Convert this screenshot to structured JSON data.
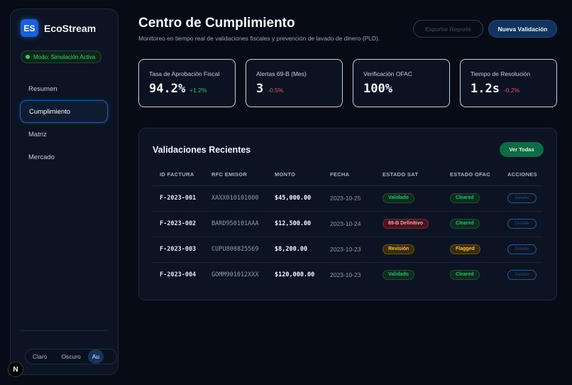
{
  "app": {
    "logo_initials": "ES",
    "name": "EcoStream"
  },
  "sidebar": {
    "mode_label": "Modo: Simulación Activa",
    "items": [
      {
        "label": "Resumen",
        "active": false
      },
      {
        "label": "Cumplimiento",
        "active": true
      },
      {
        "label": "Matriz",
        "active": false
      },
      {
        "label": "Mercado",
        "active": false
      }
    ],
    "theme": {
      "options": [
        "Claro",
        "Oscuro",
        "Au"
      ],
      "selected": "Au"
    }
  },
  "header": {
    "title": "Centro de Cumplimiento",
    "subtitle": "Monitoreo en tiempo real de validaciones fiscales y prevención de lavado de dinero (PLD).",
    "export_label": "Exportar Reporte",
    "new_label": "Nueva Validación"
  },
  "kpis": [
    {
      "label": "Tasa de Aprobación Fiscal",
      "value": "94.2%",
      "delta": "+1.2%",
      "trend": "pos"
    },
    {
      "label": "Alertas 69-B (Mes)",
      "value": "3",
      "delta": "-0.5%",
      "trend": "neg"
    },
    {
      "label": "Verificación OFAC",
      "value": "100%",
      "delta": "",
      "trend": "pos"
    },
    {
      "label": "Tiempo de Resolución",
      "value": "1.2s",
      "delta": "-0.2%",
      "trend": "neg"
    }
  ],
  "table": {
    "title": "Validaciones Recientes",
    "view_all_label": "Ver Todas",
    "columns": [
      "ID FACTURA",
      "RFC EMISOR",
      "MONTO",
      "FECHA",
      "ESTADO SAT",
      "ESTADO OFAC",
      "ACCIONES"
    ],
    "rows": [
      {
        "id": "F-2023-001",
        "rfc": "XAXX010101000",
        "amount": "$45,000.00",
        "date": "2023-10-25",
        "sat": "Validado",
        "sat_color": "green",
        "ofac": "Cleared",
        "ofac_color": "green",
        "action": "Detalle"
      },
      {
        "id": "F-2023-002",
        "rfc": "BARD950101AAA",
        "amount": "$12,500.00",
        "date": "2023-10-24",
        "sat": "69-B Definitivo",
        "sat_color": "red",
        "ofac": "Cleared",
        "ofac_color": "green",
        "action": "Detalle"
      },
      {
        "id": "F-2023-003",
        "rfc": "CUPU800825569",
        "amount": "$8,200.00",
        "date": "2023-10-23",
        "sat": "Revisión",
        "sat_color": "amber",
        "ofac": "Flagged",
        "ofac_color": "amber",
        "action": "Detalle"
      },
      {
        "id": "F-2023-004",
        "rfc": "GOMM901012XXX",
        "amount": "$120,000.00",
        "date": "2023-10-23",
        "sat": "Validado",
        "sat_color": "green",
        "ofac": "Cleared",
        "ofac_color": "green",
        "action": "Detalle"
      }
    ]
  },
  "footer_badge": "N"
}
